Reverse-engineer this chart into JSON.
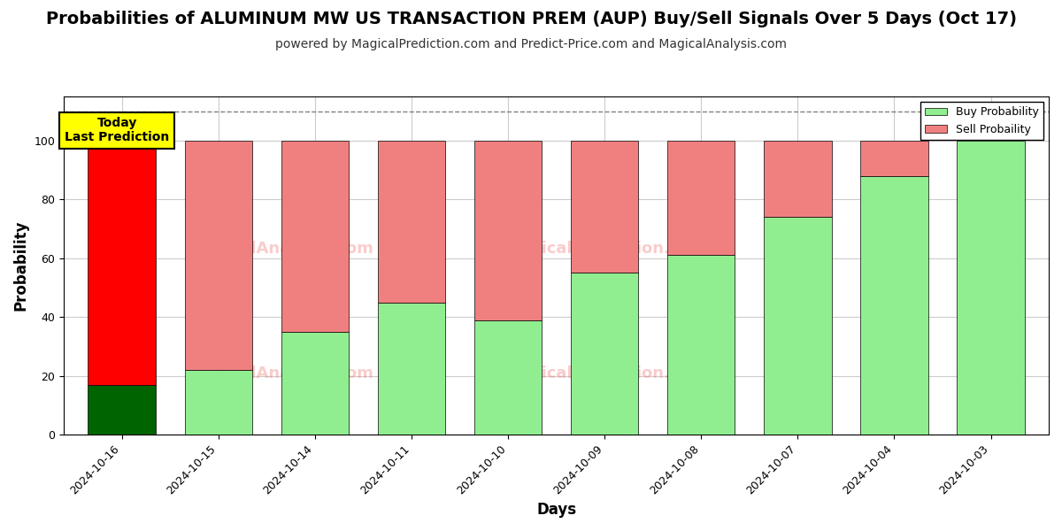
{
  "title": "Probabilities of ALUMINUM MW US TRANSACTION PREM (AUP) Buy/Sell Signals Over 5 Days (Oct 17)",
  "subtitle": "powered by MagicalPrediction.com and Predict-Price.com and MagicalAnalysis.com",
  "xlabel": "Days",
  "ylabel": "Probability",
  "categories": [
    "2024-10-16",
    "2024-10-15",
    "2024-10-14",
    "2024-10-11",
    "2024-10-10",
    "2024-10-09",
    "2024-10-08",
    "2024-10-07",
    "2024-10-04",
    "2024-10-03"
  ],
  "buy_values": [
    17,
    22,
    35,
    45,
    39,
    55,
    61,
    74,
    88,
    100
  ],
  "sell_values": [
    83,
    78,
    65,
    55,
    61,
    45,
    39,
    26,
    12,
    0
  ],
  "buy_colors_normal": "#90EE90",
  "sell_colors_normal": "#F08080",
  "buy_color_today": "#006400",
  "sell_color_today": "#FF0000",
  "today_index": 0,
  "ylim": [
    0,
    115
  ],
  "yticks": [
    0,
    20,
    40,
    60,
    80,
    100
  ],
  "dashed_line_y": 110,
  "legend_buy_label": "Buy Probability",
  "legend_sell_label": "Sell Probaility",
  "today_box_text": "Today\nLast Prediction",
  "today_box_facecolor": "#FFFF00",
  "today_box_edgecolor": "#000000",
  "title_fontsize": 14,
  "subtitle_fontsize": 10,
  "axis_label_fontsize": 12,
  "tick_fontsize": 9,
  "background_color": "#ffffff",
  "grid_color": "#cccccc"
}
